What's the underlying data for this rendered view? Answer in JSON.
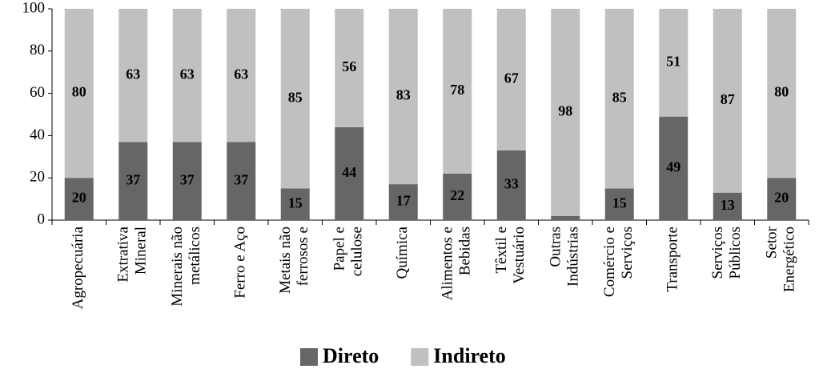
{
  "chart_data": {
    "type": "stacked-bar",
    "categories": [
      "Agropecuária",
      "Extrativa\nMineral",
      "Minerais não\nmetálicos",
      "Ferro e Aço",
      "Metais não\nferrosos e",
      "Papel e\ncelulose",
      "Química",
      "Alimentos e\nBebidas",
      "Têxtil e\nVestuário",
      "Outras\nIndústrias",
      "Comércio e\nServiços",
      "Transporte",
      "Serviços\nPúblicos",
      "Setor\nEnergético"
    ],
    "series": [
      {
        "name": "Direto",
        "color": "#666666",
        "values": [
          20,
          37,
          37,
          37,
          15,
          44,
          17,
          22,
          33,
          2,
          15,
          49,
          13,
          20
        ],
        "value_labels": [
          "20",
          "37",
          "37",
          "37",
          "15",
          "44",
          "17",
          "22",
          "33",
          null,
          "15",
          "49",
          "13",
          "20"
        ]
      },
      {
        "name": "Indireto",
        "color": "#c0c0c0",
        "values": [
          80,
          63,
          63,
          63,
          85,
          56,
          83,
          78,
          67,
          98,
          85,
          51,
          87,
          80
        ]
      }
    ],
    "ylim": [
      0,
      100
    ],
    "yticks": [
      0,
      20,
      40,
      60,
      80,
      100
    ],
    "grid": false,
    "legend": "bottom"
  }
}
